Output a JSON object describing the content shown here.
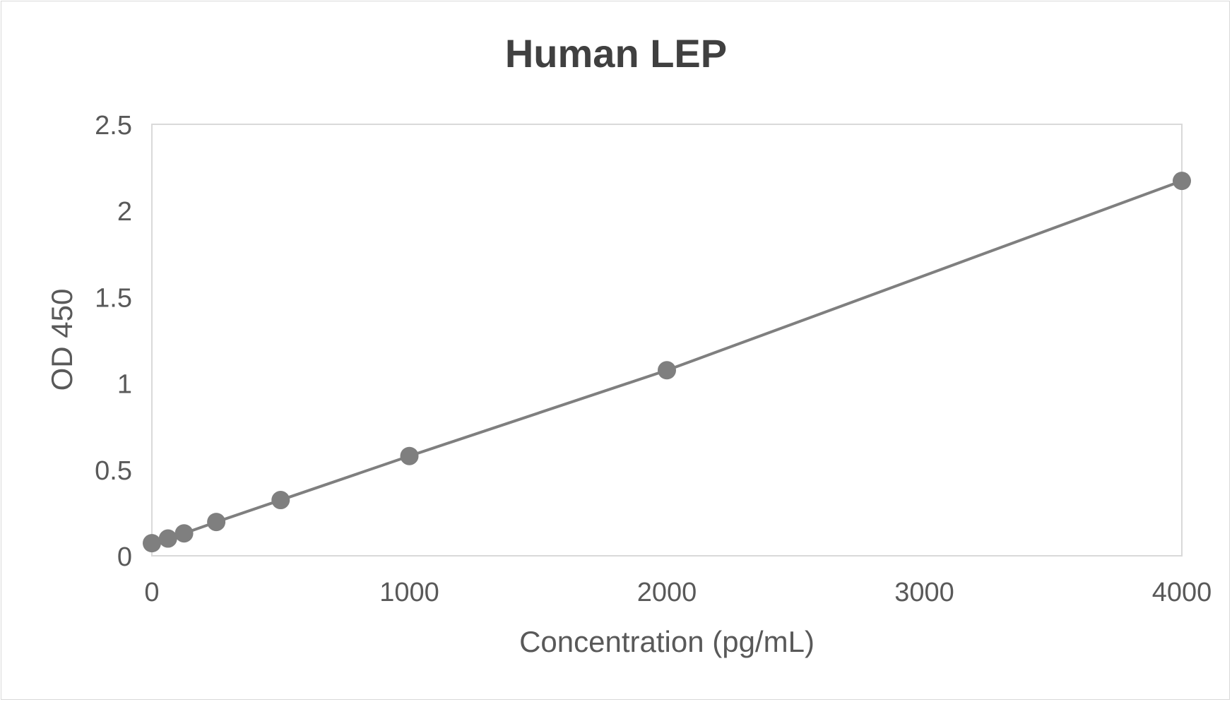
{
  "chart_data": {
    "type": "scatter",
    "title": "Human LEP",
    "xlabel": "Concentration (pg/mL)",
    "ylabel": "OD 450",
    "xlim": [
      0,
      4000
    ],
    "ylim": [
      0,
      2.5
    ],
    "xticks": [
      "0",
      "1000",
      "2000",
      "3000",
      "4000"
    ],
    "yticks": [
      "0",
      "0.5",
      "1",
      "1.5",
      "2",
      "2.5"
    ],
    "grid": false,
    "legend": "none",
    "trendline": "straight lines connecting points",
    "series": [
      {
        "x": [
          0,
          62.5,
          125,
          250,
          500,
          1000,
          2000,
          4000
        ],
        "y": [
          0.073,
          0.1,
          0.13,
          0.196,
          0.323,
          0.578,
          1.075,
          2.172
        ],
        "color": "#7f7f7f"
      }
    ]
  }
}
